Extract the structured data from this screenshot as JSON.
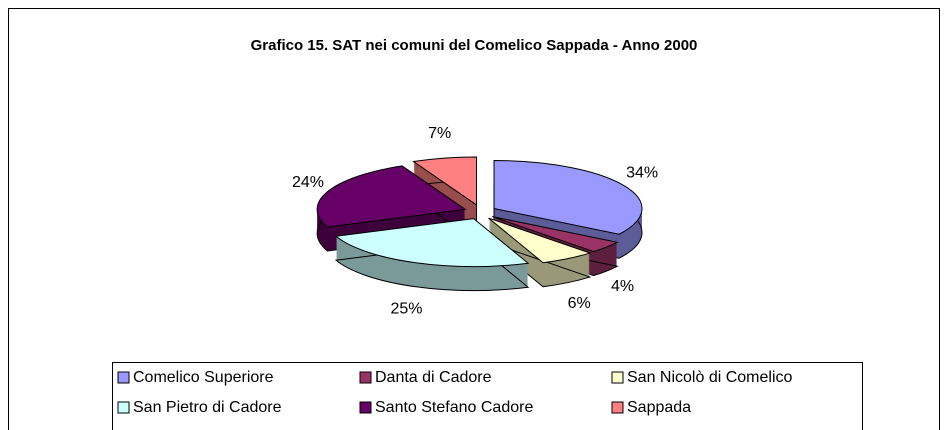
{
  "chart_data": {
    "type": "pie3d",
    "title": "Grafico 15. SAT nei comuni del Comelico Sappada - Anno 2000",
    "categories": [
      "Comelico Superiore",
      "Danta di Cadore",
      "San Nicolò di Comelico",
      "San Pietro di Cadore",
      "Santo Stefano Cadore",
      "Sappada"
    ],
    "values": [
      34,
      4,
      6,
      25,
      24,
      7
    ],
    "value_labels": [
      "34%",
      "4%",
      "6%",
      "25%",
      "24%",
      "7%"
    ],
    "colors": [
      "#9999ff",
      "#993366",
      "#ffffcc",
      "#ccffff",
      "#660066",
      "#ff8080"
    ],
    "legend": "bottom"
  }
}
